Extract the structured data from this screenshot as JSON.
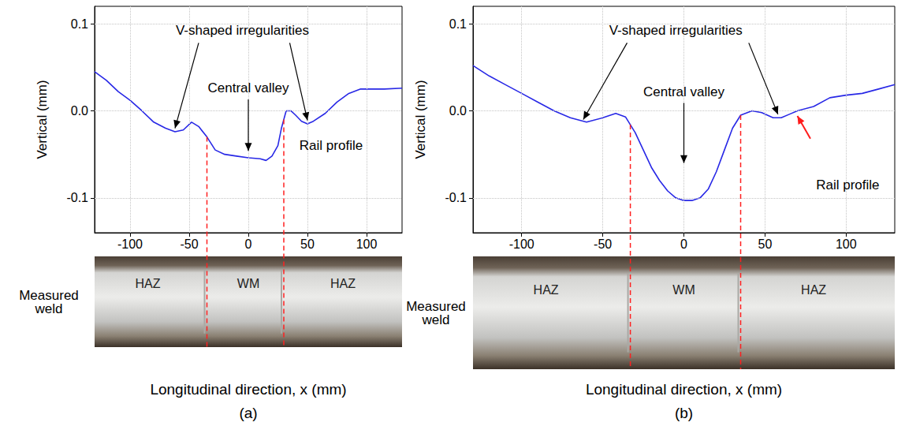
{
  "chart_data": [
    {
      "type": "line",
      "panel_label": "(a)",
      "xlabel": "Longitudinal direction, x (mm)",
      "ylabel": "Vertical (mm)",
      "x": [
        -130,
        -120,
        -110,
        -100,
        -90,
        -80,
        -70,
        -62,
        -55,
        -48,
        -42,
        -35,
        -28,
        -20,
        -10,
        0,
        10,
        15,
        20,
        25,
        28,
        32,
        36,
        40,
        45,
        50,
        55,
        65,
        75,
        85,
        95,
        105,
        115,
        130
      ],
      "values": [
        0.045,
        0.035,
        0.022,
        0.012,
        0.0,
        -0.013,
        -0.02,
        -0.024,
        -0.022,
        -0.013,
        -0.018,
        -0.03,
        -0.045,
        -0.05,
        -0.052,
        -0.054,
        -0.055,
        -0.057,
        -0.052,
        -0.04,
        -0.02,
        0.0,
        0.0,
        -0.005,
        -0.012,
        -0.015,
        -0.012,
        -0.003,
        0.01,
        0.02,
        0.025,
        0.025,
        0.025,
        0.026
      ],
      "color": "#2828e6",
      "xlim": [
        -130,
        130
      ],
      "xticks": [
        -100,
        -50,
        0,
        50,
        100
      ],
      "ylim": [
        -0.14,
        0.12
      ],
      "yticks": [
        -0.1,
        {
          "value": 0,
          "label": "0.0"
        },
        0.1
      ],
      "grid": true,
      "annotations": [
        {
          "text": "V-shaped irregularities",
          "x": -5,
          "y": 0.092,
          "arrows": [
            {
              "from": [
                -42,
                0.078
              ],
              "to": [
                -62,
                -0.02
              ]
            },
            {
              "from": [
                35,
                0.078
              ],
              "to": [
                50,
                -0.011
              ]
            }
          ]
        },
        {
          "text": "Central valley",
          "x": 0,
          "y": 0.026,
          "arrows": [
            {
              "from": [
                0,
                0.013
              ],
              "to": [
                0,
                -0.046
              ]
            }
          ]
        },
        {
          "text": "Rail profile",
          "x": 70,
          "y": -0.04,
          "arrows": []
        }
      ],
      "weld_boundaries": [
        -35,
        30
      ],
      "photo": {
        "caption": "Measured weld",
        "zones": [
          {
            "text": "HAZ",
            "x": -85
          },
          {
            "text": "WM",
            "x": 0
          },
          {
            "text": "HAZ",
            "x": 80
          }
        ]
      }
    },
    {
      "type": "line",
      "panel_label": "(b)",
      "xlabel": "Longitudinal direction, x (mm)",
      "ylabel": "Vertical (mm)",
      "x": [
        -130,
        -120,
        -110,
        -100,
        -90,
        -80,
        -70,
        -60,
        -50,
        -42,
        -36,
        -30,
        -25,
        -20,
        -15,
        -10,
        -5,
        0,
        5,
        10,
        15,
        20,
        25,
        30,
        35,
        42,
        48,
        55,
        60,
        65,
        70,
        80,
        90,
        100,
        110,
        120,
        130
      ],
      "values": [
        0.052,
        0.04,
        0.03,
        0.02,
        0.01,
        0.0,
        -0.008,
        -0.013,
        -0.008,
        -0.003,
        -0.007,
        -0.025,
        -0.045,
        -0.065,
        -0.08,
        -0.092,
        -0.1,
        -0.103,
        -0.103,
        -0.1,
        -0.09,
        -0.07,
        -0.045,
        -0.02,
        -0.005,
        0.0,
        -0.002,
        -0.008,
        -0.008,
        -0.004,
        0.0,
        0.005,
        0.015,
        0.018,
        0.02,
        0.025,
        0.03
      ],
      "color": "#2828e6",
      "xlim": [
        -130,
        130
      ],
      "xticks": [
        -100,
        -50,
        0,
        50,
        100
      ],
      "ylim": [
        -0.14,
        0.12
      ],
      "yticks": [
        -0.1,
        {
          "value": 0,
          "label": "0.0"
        },
        0.1
      ],
      "grid": true,
      "annotations": [
        {
          "text": "V-shaped irregularities",
          "x": -5,
          "y": 0.092,
          "arrows": [
            {
              "from": [
                -35,
                0.078
              ],
              "to": [
                -62,
                -0.01
              ]
            },
            {
              "from": [
                40,
                0.078
              ],
              "to": [
                58,
                -0.004
              ]
            }
          ]
        },
        {
          "text": "Central valley",
          "x": 0,
          "y": 0.022,
          "arrows": [
            {
              "from": [
                0,
                0.009
              ],
              "to": [
                0,
                -0.06
              ]
            }
          ]
        },
        {
          "text": "Rail profile",
          "x": 101,
          "y": -0.085,
          "arrows": []
        }
      ],
      "marked_arrow": {
        "from": [
          78,
          -0.032
        ],
        "to": [
          70,
          -0.006
        ]
      },
      "weld_boundaries": [
        -33,
        35
      ],
      "photo": {
        "caption": "Measured weld",
        "zones": [
          {
            "text": "HAZ",
            "x": -85
          },
          {
            "text": "WM",
            "x": 0
          },
          {
            "text": "HAZ",
            "x": 80
          }
        ]
      }
    }
  ]
}
